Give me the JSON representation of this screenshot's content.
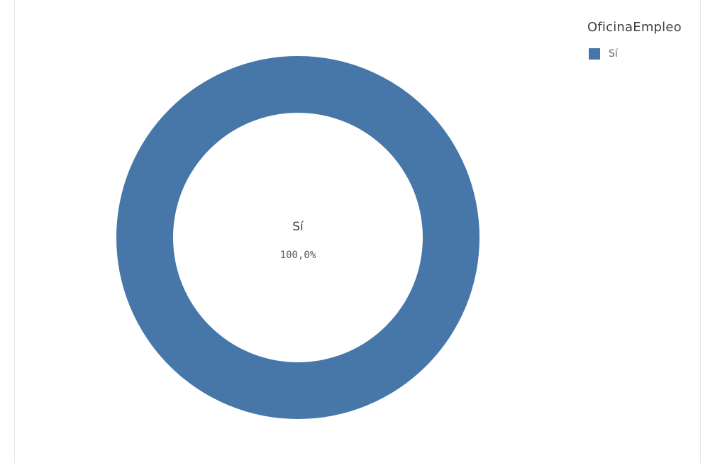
{
  "chart_data": {
    "type": "pie",
    "variant": "donut",
    "title": "",
    "legend": {
      "title": "OficinaEmpleo",
      "placement": "top-right"
    },
    "slices": [
      {
        "label": "Sí",
        "value": 100.0,
        "percent_label": "100,0%",
        "color": "#4677a8"
      }
    ],
    "center": {
      "label": "Sí",
      "value_label": "100,0%"
    }
  }
}
